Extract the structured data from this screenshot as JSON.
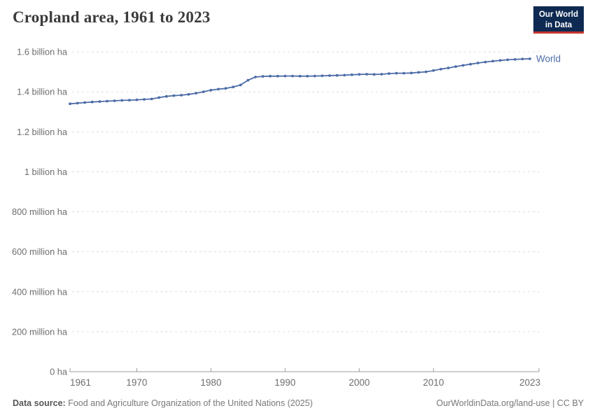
{
  "header": {
    "title": "Cropland area, 1961 to 2023",
    "logo": {
      "line1": "Our World",
      "line2": "in Data"
    }
  },
  "chart_data": {
    "type": "line",
    "title": "Cropland area, 1961 to 2023",
    "unit": "billion ha",
    "grid": "horizontal-dashed",
    "legend_position": "end-of-line-label",
    "xlim": [
      1961,
      2023
    ],
    "ylim_billion_ha": [
      0,
      1.6
    ],
    "x_ticks": [
      1961,
      1970,
      1980,
      1990,
      2000,
      2010,
      2023
    ],
    "y_ticks": [
      {
        "v": 1.6,
        "label": "1.6 billion ha"
      },
      {
        "v": 1.4,
        "label": "1.4 billion ha"
      },
      {
        "v": 1.2,
        "label": "1.2 billion ha"
      },
      {
        "v": 1.0,
        "label": "1 billion ha"
      },
      {
        "v": 0.8,
        "label": "800 million ha"
      },
      {
        "v": 0.6,
        "label": "600 million ha"
      },
      {
        "v": 0.4,
        "label": "400 million ha"
      },
      {
        "v": 0.2,
        "label": "200 million ha"
      },
      {
        "v": 0,
        "label": "0 ha"
      }
    ],
    "series": [
      {
        "name": "World",
        "color": "#4C6CA8",
        "x": [
          1961,
          1962,
          1963,
          1964,
          1965,
          1966,
          1967,
          1968,
          1969,
          1970,
          1971,
          1972,
          1973,
          1974,
          1975,
          1976,
          1977,
          1978,
          1979,
          1980,
          1981,
          1982,
          1983,
          1984,
          1985,
          1986,
          1987,
          1988,
          1989,
          1990,
          1991,
          1992,
          1993,
          1994,
          1995,
          1996,
          1997,
          1998,
          1999,
          2000,
          2001,
          2002,
          2003,
          2004,
          2005,
          2006,
          2007,
          2008,
          2009,
          2010,
          2011,
          2012,
          2013,
          2014,
          2015,
          2016,
          2017,
          2018,
          2019,
          2020,
          2021,
          2022,
          2023
        ],
        "values_billion_ha": [
          1.34,
          1.343,
          1.346,
          1.349,
          1.351,
          1.353,
          1.355,
          1.357,
          1.358,
          1.36,
          1.362,
          1.364,
          1.371,
          1.377,
          1.381,
          1.383,
          1.387,
          1.393,
          1.4,
          1.408,
          1.413,
          1.417,
          1.424,
          1.434,
          1.458,
          1.474,
          1.477,
          1.478,
          1.478,
          1.479,
          1.479,
          1.478,
          1.478,
          1.479,
          1.48,
          1.481,
          1.482,
          1.483,
          1.485,
          1.487,
          1.488,
          1.487,
          1.488,
          1.491,
          1.493,
          1.493,
          1.494,
          1.497,
          1.5,
          1.506,
          1.513,
          1.519,
          1.526,
          1.532,
          1.538,
          1.544,
          1.549,
          1.553,
          1.557,
          1.56,
          1.562,
          1.564,
          1.565
        ]
      }
    ]
  },
  "footer": {
    "source_label": "Data source:",
    "source_text": "Food and Agriculture Organization of the United Nations (2025)",
    "link_text": "OurWorldinData.org/land-use | CC BY"
  },
  "colors": {
    "line": "#4C6CA8",
    "logo_bg": "#0E2A52",
    "logo_strip": "#C5382E",
    "gridline": "#dcdcdc",
    "axis": "#9c9c9c",
    "tick_text": "#6e6e6e"
  }
}
